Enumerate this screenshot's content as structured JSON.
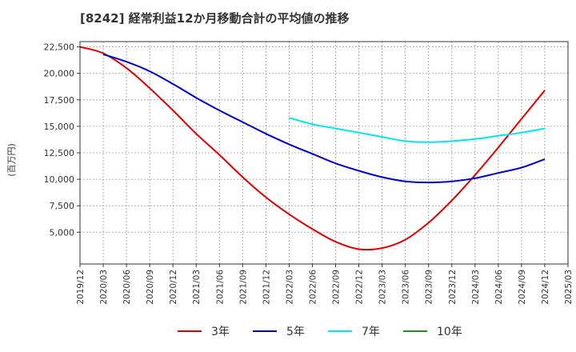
{
  "chart_data": {
    "type": "line",
    "title": "[8242]  経常利益12か月移動合計の平均値の推移",
    "ylabel": "(百万円)",
    "xlabel": "",
    "ylim": [
      2000,
      23000
    ],
    "yticks": [
      5000,
      7500,
      10000,
      12500,
      15000,
      17500,
      20000,
      22500
    ],
    "ytick_labels": [
      "5,000",
      "7,500",
      "10,000",
      "12,500",
      "15,000",
      "17,500",
      "20,000",
      "22,500"
    ],
    "xtick_labels": [
      "2019/12",
      "2020/03",
      "2020/06",
      "2020/09",
      "2020/12",
      "2021/03",
      "2021/06",
      "2021/09",
      "2021/12",
      "2022/03",
      "2022/06",
      "2022/09",
      "2022/12",
      "2023/03",
      "2023/06",
      "2023/09",
      "2023/12",
      "2024/03",
      "2024/06",
      "2024/09",
      "2024/12",
      "2025/03"
    ],
    "grid": true,
    "legend_position": "bottom",
    "series": [
      {
        "name": "3年",
        "color": "#dd0000",
        "x": [
          "2019/12",
          "2020/03",
          "2020/06",
          "2020/09",
          "2020/12",
          "2021/03",
          "2021/06",
          "2021/09",
          "2021/12",
          "2022/03",
          "2022/06",
          "2022/09",
          "2022/12",
          "2023/03",
          "2023/06",
          "2023/09",
          "2023/12",
          "2024/03",
          "2024/06",
          "2024/09",
          "2024/12"
        ],
        "values": [
          22500,
          21900,
          20500,
          18600,
          16500,
          14300,
          12300,
          10200,
          8300,
          6700,
          5300,
          4100,
          3400,
          3500,
          4300,
          5900,
          8000,
          10400,
          13000,
          15700,
          18400
        ]
      },
      {
        "name": "5年",
        "color": "#0000cc",
        "x": [
          "2020/03",
          "2020/06",
          "2020/09",
          "2020/12",
          "2021/03",
          "2021/06",
          "2021/09",
          "2021/12",
          "2022/03",
          "2022/06",
          "2022/09",
          "2022/12",
          "2023/03",
          "2023/06",
          "2023/09",
          "2023/12",
          "2024/03",
          "2024/06",
          "2024/09",
          "2024/12"
        ],
        "values": [
          21800,
          21100,
          20200,
          19000,
          17700,
          16500,
          15400,
          14300,
          13300,
          12400,
          11500,
          10800,
          10200,
          9800,
          9700,
          9800,
          10100,
          10600,
          11100,
          11900
        ]
      },
      {
        "name": "7年",
        "color": "#00e5ee",
        "x": [
          "2022/03",
          "2022/06",
          "2022/09",
          "2022/12",
          "2023/03",
          "2023/06",
          "2023/09",
          "2023/12",
          "2024/03",
          "2024/06",
          "2024/09",
          "2024/12"
        ],
        "values": [
          15800,
          15200,
          14800,
          14400,
          14000,
          13600,
          13500,
          13600,
          13800,
          14100,
          14400,
          14800
        ]
      },
      {
        "name": "10年",
        "color": "#228b22",
        "x": [],
        "values": []
      }
    ]
  }
}
